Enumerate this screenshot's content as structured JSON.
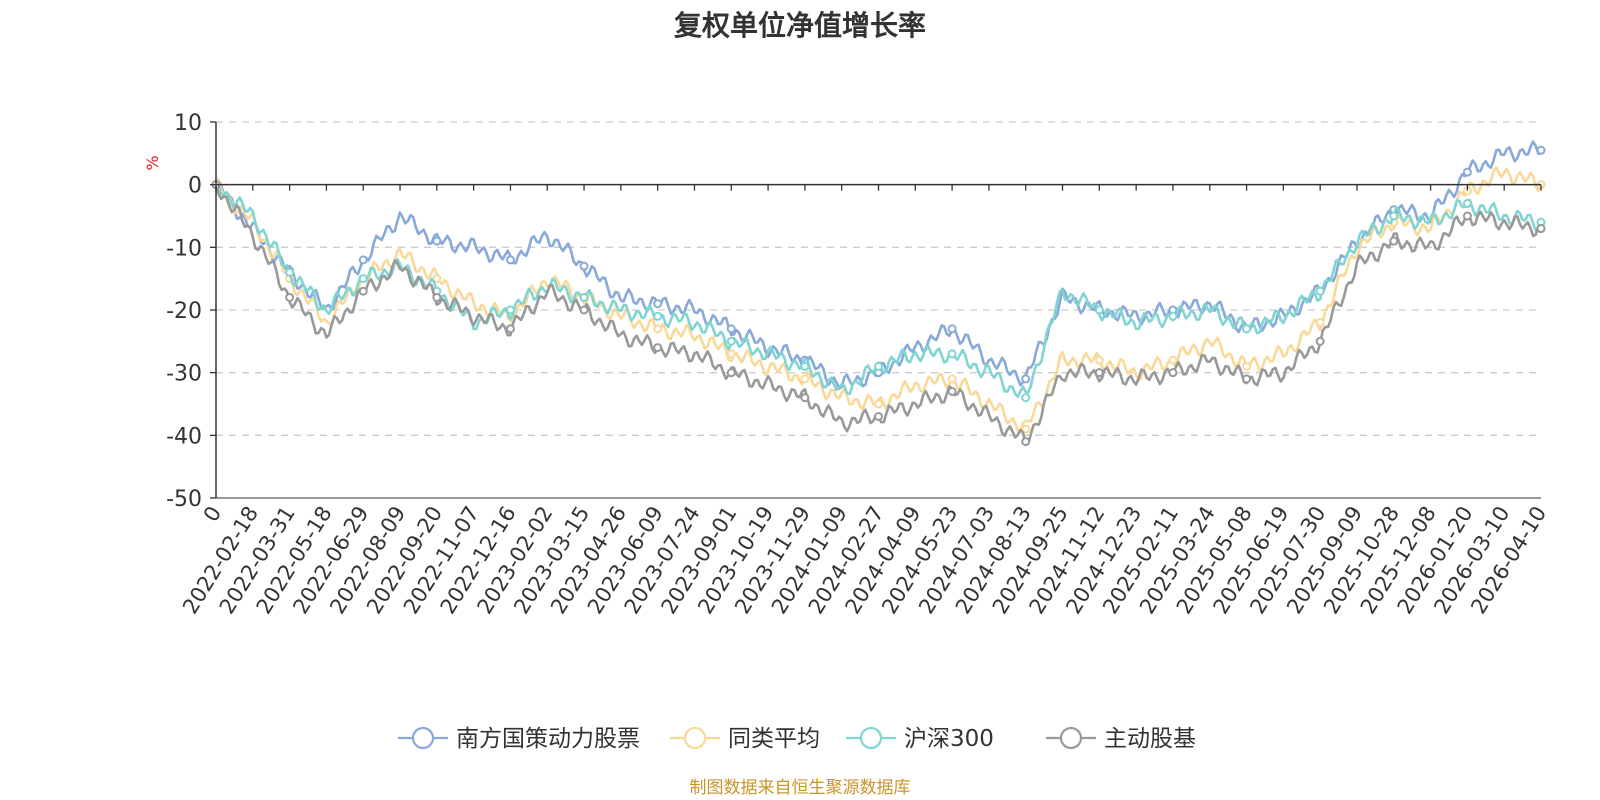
{
  "chart_data": {
    "type": "line",
    "title": "复权单位净值增长率",
    "ylabel": "%",
    "xlabel": "",
    "ylim": [
      -50,
      10
    ],
    "yticks": [
      10,
      0,
      -10,
      -20,
      -30,
      -40,
      -50
    ],
    "grid": true,
    "legend_position": "bottom-center",
    "categories": [
      "0",
      "2022-02-18",
      "2022-03-31",
      "2022-05-18",
      "2022-06-29",
      "2022-08-09",
      "2022-09-20",
      "2022-11-07",
      "2022-12-16",
      "2023-02-02",
      "2023-03-15",
      "2023-04-26",
      "2023-06-09",
      "2023-07-24",
      "2023-09-01",
      "2023-10-19",
      "2023-11-29",
      "2024-01-09",
      "2024-02-27",
      "2024-04-09",
      "2024-05-23",
      "2024-07-03",
      "2024-08-13",
      "2024-09-25",
      "2024-11-12",
      "2024-12-23",
      "2025-02-11",
      "2025-03-24",
      "2025-05-08",
      "2025-06-19",
      "2025-07-30",
      "2025-09-09",
      "2025-10-28",
      "2025-12-08",
      "2026-01-20",
      "2026-03-10",
      "2026-04-10"
    ],
    "series": [
      {
        "name": "南方国策动力股票",
        "color": "#88a9d9",
        "values": [
          0,
          -7,
          -14,
          -20,
          -12,
          -5,
          -9,
          -10,
          -12,
          -8,
          -13,
          -18,
          -19,
          -20,
          -23,
          -26,
          -28,
          -32,
          -30,
          -26,
          -23,
          -28,
          -31,
          -18,
          -20,
          -21,
          -20,
          -19,
          -23,
          -21,
          -17,
          -9,
          -4,
          -5,
          2,
          5,
          5.5
        ]
      },
      {
        "name": "同类平均",
        "color": "#fad898",
        "values": [
          0,
          -6,
          -15,
          -22,
          -15,
          -11,
          -15,
          -19,
          -21,
          -15,
          -18,
          -21,
          -23,
          -24,
          -27,
          -29,
          -31,
          -34,
          -35,
          -32,
          -31,
          -35,
          -39,
          -28,
          -28,
          -30,
          -28,
          -25,
          -29,
          -27,
          -22,
          -10,
          -6,
          -7,
          -1,
          2,
          0
        ]
      },
      {
        "name": "沪深300",
        "color": "#80d5d2",
        "values": [
          0,
          -5,
          -14,
          -20,
          -15,
          -13,
          -17,
          -22,
          -20,
          -16,
          -18,
          -20,
          -21,
          -22,
          -25,
          -27,
          -29,
          -33,
          -29,
          -27,
          -27,
          -30,
          -34,
          -17,
          -20,
          -22,
          -21,
          -20,
          -23,
          -21,
          -17,
          -9,
          -5,
          -6,
          -3,
          -5,
          -6
        ]
      },
      {
        "name": "主动股基",
        "color": "#999999",
        "values": [
          0,
          -8,
          -18,
          -24,
          -17,
          -13,
          -18,
          -21,
          -23,
          -17,
          -20,
          -24,
          -26,
          -27,
          -30,
          -32,
          -34,
          -38,
          -37,
          -35,
          -33,
          -37,
          -41,
          -30,
          -30,
          -31,
          -30,
          -28,
          -31,
          -30,
          -25,
          -13,
          -9,
          -10,
          -5,
          -6,
          -7
        ]
      }
    ]
  },
  "footer": {
    "source": "制图数据来自恒生聚源数据库"
  },
  "colors": {
    "axis": "#333333",
    "grid": "#cccccc",
    "unit": "#e02020",
    "source": "#c8952b"
  }
}
